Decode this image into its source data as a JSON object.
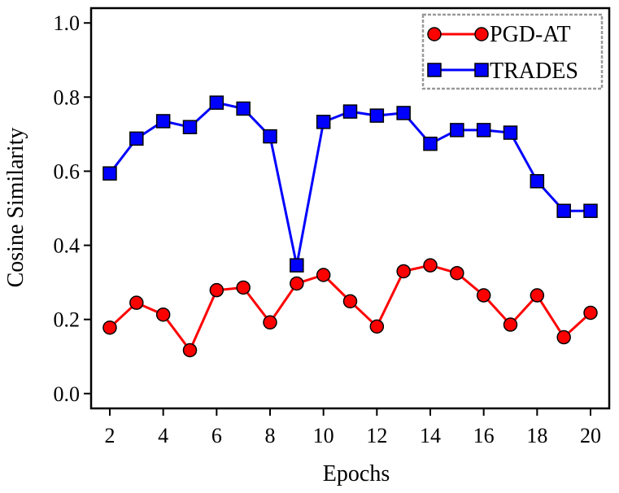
{
  "chart_data": {
    "type": "line",
    "xlabel": "Epochs",
    "ylabel": "Cosine Similarity",
    "xlim": [
      1.3,
      20.7
    ],
    "ylim": [
      -0.04,
      1.04
    ],
    "xticks": [
      2,
      4,
      6,
      8,
      10,
      12,
      14,
      16,
      18,
      20
    ],
    "xtick_labels": [
      "2",
      "4",
      "6",
      "8",
      "10",
      "12",
      "14",
      "16",
      "18",
      "20"
    ],
    "yticks": [
      0.0,
      0.2,
      0.4,
      0.6,
      0.8,
      1.0
    ],
    "ytick_labels": [
      "0.0",
      "0.2",
      "0.4",
      "0.6",
      "0.8",
      "1.0"
    ],
    "grid": false,
    "legend_position": "top-right",
    "x": [
      2,
      3,
      4,
      5,
      6,
      7,
      8,
      9,
      10,
      11,
      12,
      13,
      14,
      15,
      16,
      17,
      18,
      19,
      20
    ],
    "series": [
      {
        "name": "PGD-AT",
        "color": "#ff0000",
        "marker": "circle",
        "values": [
          0.178,
          0.245,
          0.213,
          0.117,
          0.279,
          0.286,
          0.192,
          0.297,
          0.32,
          0.249,
          0.181,
          0.33,
          0.346,
          0.325,
          0.265,
          0.186,
          0.265,
          0.152,
          0.218
        ]
      },
      {
        "name": "TRADES",
        "color": "#0000ff",
        "marker": "square",
        "values": [
          0.594,
          0.688,
          0.735,
          0.719,
          0.785,
          0.769,
          0.694,
          0.346,
          0.733,
          0.761,
          0.75,
          0.757,
          0.674,
          0.711,
          0.711,
          0.704,
          0.573,
          0.493,
          0.493
        ]
      }
    ]
  }
}
